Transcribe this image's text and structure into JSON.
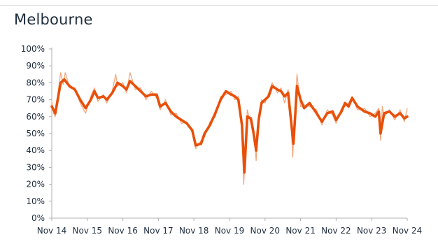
{
  "chart_data": {
    "type": "line",
    "title": "Melbourne",
    "x_tick_labels": [
      "Nov 14",
      "Nov 15",
      "Nov 16",
      "Nov 17",
      "Nov 18",
      "Nov 19",
      "Nov 20",
      "Nov 21",
      "Nov 22",
      "Nov 23",
      "Nov 24"
    ],
    "y_tick_labels": [
      "0%",
      "10%",
      "20%",
      "30%",
      "40%",
      "50%",
      "60%",
      "70%",
      "80%",
      "90%",
      "100%"
    ],
    "ylim": [
      0,
      100
    ],
    "xlim": [
      "2014-11",
      "2024-11"
    ],
    "grid": false,
    "colors": {
      "smoothed": "#e8500a",
      "raw": "#f2a77f"
    },
    "series": [
      {
        "values": [
          [
            0,
            66
          ],
          [
            0.05,
            64
          ],
          [
            0.1,
            62
          ],
          [
            0.15,
            68
          ],
          [
            0.25,
            80
          ],
          [
            0.35,
            82
          ],
          [
            0.5,
            78
          ],
          [
            0.65,
            76
          ],
          [
            0.8,
            70
          ],
          [
            0.95,
            65
          ],
          [
            1.1,
            70
          ],
          [
            1.2,
            75
          ],
          [
            1.3,
            71
          ],
          [
            1.45,
            72
          ],
          [
            1.55,
            70
          ],
          [
            1.7,
            74
          ],
          [
            1.85,
            80
          ],
          [
            2.0,
            78
          ],
          [
            2.1,
            76
          ],
          [
            2.2,
            81
          ],
          [
            2.35,
            78
          ],
          [
            2.5,
            75
          ],
          [
            2.65,
            72
          ],
          [
            2.8,
            73
          ],
          [
            2.95,
            73
          ],
          [
            3.05,
            66
          ],
          [
            3.2,
            68
          ],
          [
            3.35,
            63
          ],
          [
            3.5,
            60
          ],
          [
            3.65,
            58
          ],
          [
            3.8,
            56
          ],
          [
            3.95,
            52
          ],
          [
            4.05,
            43
          ],
          [
            4.2,
            44
          ],
          [
            4.3,
            50
          ],
          [
            4.45,
            55
          ],
          [
            4.6,
            62
          ],
          [
            4.75,
            70
          ],
          [
            4.9,
            75
          ],
          [
            5.05,
            73
          ],
          [
            5.15,
            72
          ],
          [
            5.25,
            70
          ],
          [
            5.35,
            55
          ],
          [
            5.42,
            27
          ],
          [
            5.5,
            60
          ],
          [
            5.6,
            59
          ],
          [
            5.68,
            50
          ],
          [
            5.75,
            40
          ],
          [
            5.82,
            58
          ],
          [
            5.9,
            68
          ],
          [
            6.0,
            70
          ],
          [
            6.1,
            72
          ],
          [
            6.2,
            78
          ],
          [
            6.35,
            76
          ],
          [
            6.45,
            75
          ],
          [
            6.55,
            72
          ],
          [
            6.65,
            74
          ],
          [
            6.8,
            44
          ],
          [
            6.9,
            78
          ],
          [
            7.0,
            70
          ],
          [
            7.1,
            65
          ],
          [
            7.25,
            68
          ],
          [
            7.45,
            62
          ],
          [
            7.6,
            57
          ],
          [
            7.75,
            62
          ],
          [
            7.9,
            63
          ],
          [
            8.0,
            58
          ],
          [
            8.15,
            63
          ],
          [
            8.25,
            68
          ],
          [
            8.35,
            66
          ],
          [
            8.45,
            71
          ],
          [
            8.6,
            66
          ],
          [
            8.8,
            63
          ],
          [
            8.95,
            62
          ],
          [
            9.1,
            60
          ],
          [
            9.2,
            63
          ],
          [
            9.25,
            50
          ],
          [
            9.35,
            62
          ],
          [
            9.5,
            63
          ],
          [
            9.65,
            60
          ],
          [
            9.8,
            62
          ],
          [
            9.92,
            59
          ],
          [
            10.0,
            60
          ]
        ]
      },
      {
        "values": [
          [
            0,
            69
          ],
          [
            0.05,
            62
          ],
          [
            0.1,
            60
          ],
          [
            0.15,
            70
          ],
          [
            0.25,
            86
          ],
          [
            0.32,
            79
          ],
          [
            0.38,
            86
          ],
          [
            0.5,
            77
          ],
          [
            0.65,
            77
          ],
          [
            0.8,
            68
          ],
          [
            0.95,
            62
          ],
          [
            1.1,
            72
          ],
          [
            1.2,
            77
          ],
          [
            1.3,
            69
          ],
          [
            1.45,
            73
          ],
          [
            1.55,
            68
          ],
          [
            1.7,
            75
          ],
          [
            1.8,
            85
          ],
          [
            1.85,
            78
          ],
          [
            2.0,
            80
          ],
          [
            2.1,
            74
          ],
          [
            2.2,
            86
          ],
          [
            2.35,
            76
          ],
          [
            2.5,
            77
          ],
          [
            2.65,
            70
          ],
          [
            2.8,
            75
          ],
          [
            2.95,
            71
          ],
          [
            3.05,
            64
          ],
          [
            3.2,
            70
          ],
          [
            3.35,
            61
          ],
          [
            3.5,
            62
          ],
          [
            3.65,
            56
          ],
          [
            3.8,
            57
          ],
          [
            3.95,
            51
          ],
          [
            4.05,
            41
          ],
          [
            4.2,
            46
          ],
          [
            4.3,
            48
          ],
          [
            4.45,
            57
          ],
          [
            4.6,
            60
          ],
          [
            4.75,
            72
          ],
          [
            4.9,
            73
          ],
          [
            5.05,
            75
          ],
          [
            5.15,
            70
          ],
          [
            5.25,
            72
          ],
          [
            5.35,
            52
          ],
          [
            5.4,
            20
          ],
          [
            5.45,
            40
          ],
          [
            5.5,
            64
          ],
          [
            5.6,
            56
          ],
          [
            5.68,
            52
          ],
          [
            5.75,
            34
          ],
          [
            5.8,
            56
          ],
          [
            5.9,
            70
          ],
          [
            6.0,
            68
          ],
          [
            6.1,
            74
          ],
          [
            6.2,
            80
          ],
          [
            6.35,
            74
          ],
          [
            6.45,
            77
          ],
          [
            6.55,
            68
          ],
          [
            6.65,
            76
          ],
          [
            6.72,
            60
          ],
          [
            6.78,
            36
          ],
          [
            6.85,
            70
          ],
          [
            6.9,
            85
          ],
          [
            7.0,
            66
          ],
          [
            7.1,
            67
          ],
          [
            7.25,
            66
          ],
          [
            7.45,
            64
          ],
          [
            7.6,
            55
          ],
          [
            7.75,
            64
          ],
          [
            7.9,
            61
          ],
          [
            8.0,
            56
          ],
          [
            8.15,
            65
          ],
          [
            8.25,
            66
          ],
          [
            8.35,
            68
          ],
          [
            8.45,
            72
          ],
          [
            8.6,
            64
          ],
          [
            8.8,
            65
          ],
          [
            8.95,
            60
          ],
          [
            9.1,
            62
          ],
          [
            9.2,
            65
          ],
          [
            9.25,
            46
          ],
          [
            9.3,
            66
          ],
          [
            9.35,
            60
          ],
          [
            9.5,
            64
          ],
          [
            9.65,
            58
          ],
          [
            9.8,
            64
          ],
          [
            9.92,
            57
          ],
          [
            10.0,
            65
          ]
        ]
      }
    ]
  }
}
